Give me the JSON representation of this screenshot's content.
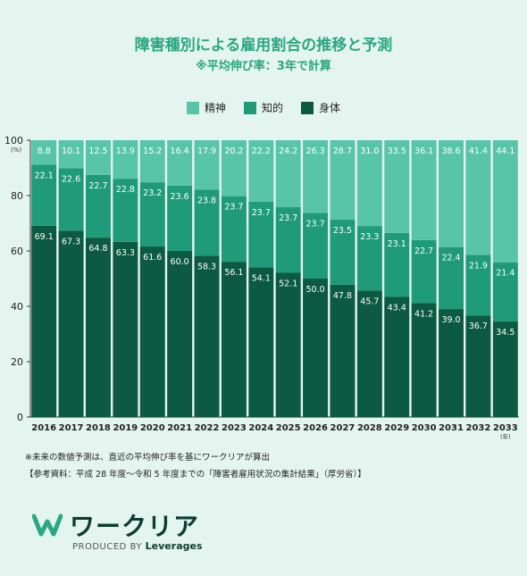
{
  "title": "障害種別による雇用割合の推移と予測",
  "subtitle": "※平均伸び率：3年で計算",
  "colors": {
    "seishin": "#58c5a9",
    "chiteki": "#1f9b79",
    "shintai": "#0b5a41",
    "title": "#2aa680",
    "background": "#e3f5ee"
  },
  "chart_data": {
    "type": "bar",
    "stacked": true,
    "categories": [
      "2016",
      "2017",
      "2018",
      "2019",
      "2020",
      "2021",
      "2022",
      "2023",
      "2024",
      "2025",
      "2026",
      "2027",
      "2028",
      "2029",
      "2030",
      "2031",
      "2032",
      "2033"
    ],
    "series": [
      {
        "name": "身体",
        "values": [
          69.1,
          67.3,
          64.8,
          63.3,
          61.6,
          60.0,
          58.3,
          56.1,
          54.1,
          52.1,
          50.0,
          47.8,
          45.7,
          43.4,
          41.2,
          39.0,
          36.7,
          34.5
        ]
      },
      {
        "name": "知的",
        "values": [
          22.1,
          22.6,
          22.7,
          22.8,
          23.2,
          23.6,
          23.8,
          23.7,
          23.7,
          23.7,
          23.7,
          23.5,
          23.3,
          23.1,
          22.7,
          22.4,
          21.9,
          21.4
        ]
      },
      {
        "name": "精神",
        "values": [
          8.8,
          10.1,
          12.5,
          13.9,
          15.2,
          16.4,
          17.9,
          20.2,
          22.2,
          24.2,
          26.3,
          28.7,
          31.0,
          33.5,
          36.1,
          38.6,
          41.4,
          44.1
        ]
      }
    ],
    "legend_order": [
      "精神",
      "知的",
      "身体"
    ],
    "ylim": [
      0,
      100
    ],
    "yticks": [
      0,
      20,
      40,
      60,
      80,
      100
    ],
    "y_unit_label": "(%)",
    "x_unit_label": "(年)",
    "legend_position": "top-center",
    "grid": false
  },
  "notes": [
    "※未来の数値予測は、直近の平均伸び率を基にワークリアが算出",
    "【参考資料：平成 28 年度〜令和 5 年度までの「障害者雇用状況の集計結果」（厚労省）】"
  ],
  "logo": {
    "brand": "ワークリア",
    "produced_by": "PRODUCED BY",
    "company": "Leverages"
  }
}
